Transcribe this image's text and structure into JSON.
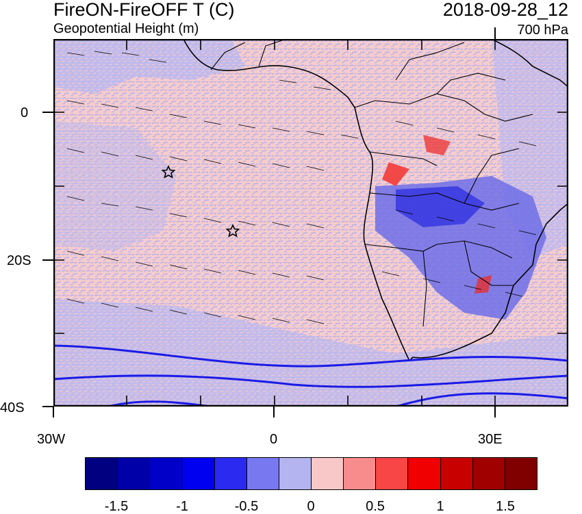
{
  "header": {
    "title": "FireON-FireOFF T (C)",
    "subtitle": "Geopotential Height (m)",
    "date": "2018-09-28_12",
    "level": "700 hPa"
  },
  "axes": {
    "lat_labels": [
      "0",
      "20S",
      "40S"
    ],
    "lon_labels": [
      "30W",
      "0",
      "30E"
    ]
  },
  "colorbar": {
    "colors": [
      "#000080",
      "#0000a8",
      "#0000c8",
      "#0000f0",
      "#2a2af0",
      "#7878f0",
      "#b4b4f0",
      "#f8c8c8",
      "#f88c8c",
      "#f84646",
      "#f00000",
      "#c80000",
      "#a00000",
      "#800000"
    ],
    "labels": [
      "-1.5",
      "-1",
      "-0.5",
      "0",
      "0.5",
      "1",
      "1.5"
    ]
  },
  "map": {
    "markers": [
      "star",
      "star"
    ]
  }
}
